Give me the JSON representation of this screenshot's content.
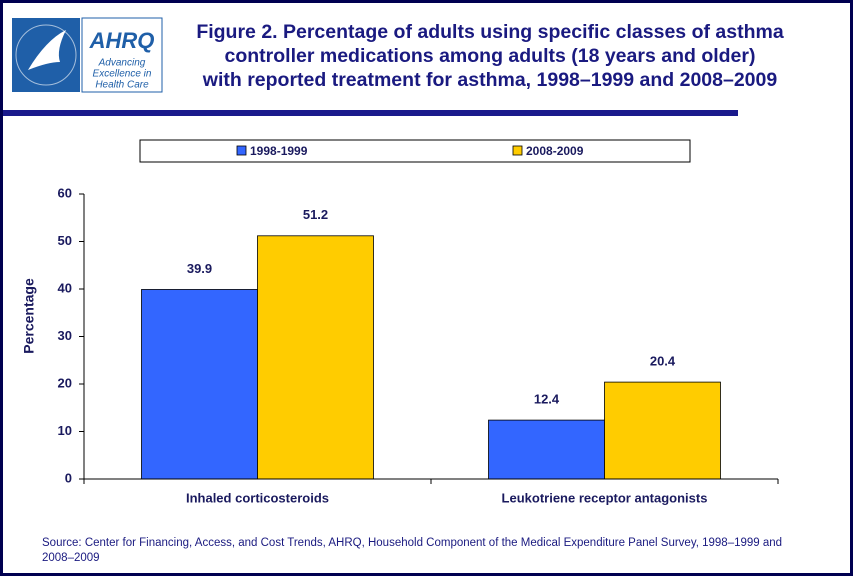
{
  "logo": {
    "name": "AHRQ",
    "tagline": [
      "Advancing",
      "Excellence in",
      "Health Care"
    ]
  },
  "chart_data": {
    "type": "bar",
    "title": [
      "Figure 2. Percentage of adults using specific classes of asthma",
      "controller medications among adults (18 years and older)",
      "with reported treatment for asthma, 1998–1999 and 2008–2009"
    ],
    "y_label": "Percentage",
    "categories": [
      "Inhaled corticosteroids",
      "Leukotriene receptor antagonists"
    ],
    "series": [
      {
        "name": "1998-1999",
        "color": "#3366ff",
        "values": [
          39.9,
          12.4
        ]
      },
      {
        "name": "2008-2009",
        "color": "#ffcc00",
        "values": [
          51.2,
          20.4
        ]
      }
    ],
    "ylim": [
      0,
      60
    ],
    "yticks": [
      0,
      10,
      20,
      30,
      40,
      50,
      60
    ],
    "source": [
      "Source: Center for Financing, Access, and Cost Trends, AHRQ, Household Component of the Medical Expenditure Panel Survey,  1998–1999 and",
      "2008–2009"
    ]
  }
}
